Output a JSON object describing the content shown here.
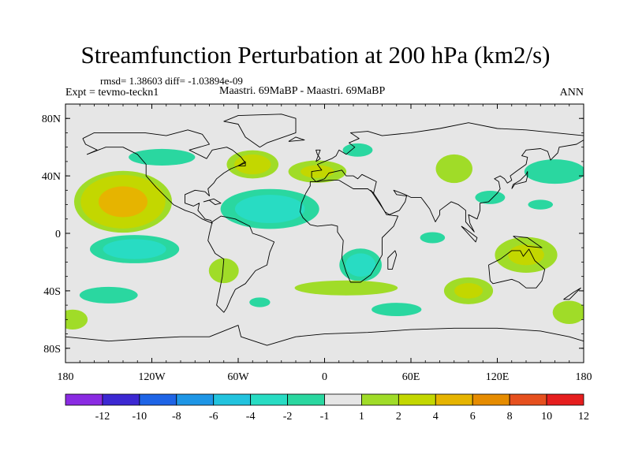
{
  "chart_data": {
    "type": "contour-map",
    "title": "Streamfunction Perturbation at 200 hPa (km2/s)",
    "stats": "rmsd= 1.38603 diff= -1.03894e-09",
    "left_label": "Expt = tevmo-teckn1",
    "center_label": "Maastri.  69MaBP - Maastri.  69MaBP",
    "right_label": "ANN",
    "lon_range": [
      -180,
      180
    ],
    "lat_range": [
      -90,
      90
    ],
    "x_ticks": [
      {
        "lon": -180,
        "label": "180"
      },
      {
        "lon": -120,
        "label": "120W"
      },
      {
        "lon": -60,
        "label": "60W"
      },
      {
        "lon": 0,
        "label": "0"
      },
      {
        "lon": 60,
        "label": "60E"
      },
      {
        "lon": 120,
        "label": "120E"
      },
      {
        "lon": 180,
        "label": "180"
      }
    ],
    "y_ticks": [
      {
        "lat": 80,
        "label": "80N"
      },
      {
        "lat": 40,
        "label": "40N"
      },
      {
        "lat": 0,
        "label": "0"
      },
      {
        "lat": -40,
        "label": "40S"
      },
      {
        "lat": -80,
        "label": "80S"
      }
    ],
    "colorbar": {
      "colors": [
        "#8a2be2",
        "#3c28d2",
        "#1e64e6",
        "#1e96e6",
        "#22c3de",
        "#28dcc3",
        "#2ad7a0",
        "#e6e6e6",
        "#a0dc28",
        "#c3d700",
        "#e6b400",
        "#e68c00",
        "#e6501e",
        "#e61e1e"
      ],
      "labels": [
        "-12",
        "-10",
        "-8",
        "-6",
        "-4",
        "-2",
        "-1",
        "1",
        "2",
        "4",
        "6",
        "8",
        "10",
        "12"
      ]
    },
    "anomalies": [
      {
        "lon": -140,
        "lat": 22,
        "rx": 38,
        "ry": 24,
        "peak": 5
      },
      {
        "lon": -113,
        "lat": 53,
        "rx": 40,
        "ry": 10,
        "peak": -1.5
      },
      {
        "lon": -132,
        "lat": -11,
        "rx": 38,
        "ry": 12,
        "peak": -3
      },
      {
        "lon": -150,
        "lat": -43,
        "rx": 35,
        "ry": 10,
        "peak": -1.5
      },
      {
        "lon": -70,
        "lat": -26,
        "rx": 18,
        "ry": 15,
        "peak": 1.5
      },
      {
        "lon": -38,
        "lat": 17,
        "rx": 42,
        "ry": 17,
        "peak": -3
      },
      {
        "lon": -50,
        "lat": 48,
        "rx": 22,
        "ry": 12,
        "peak": 3
      },
      {
        "lon": -5,
        "lat": 43,
        "rx": 26,
        "ry": 10,
        "peak": 2.5
      },
      {
        "lon": 23,
        "lat": 58,
        "rx": 18,
        "ry": 8,
        "peak": -1.5
      },
      {
        "lon": 25,
        "lat": -22,
        "rx": 18,
        "ry": 14,
        "peak": -3
      },
      {
        "lon": 15,
        "lat": -38,
        "rx": 62,
        "ry": 9,
        "peak": 1.5
      },
      {
        "lon": 100,
        "lat": -40,
        "rx": 22,
        "ry": 12,
        "peak": 2.5
      },
      {
        "lon": 50,
        "lat": -53,
        "rx": 30,
        "ry": 8,
        "peak": -1.5
      },
      {
        "lon": 140,
        "lat": -15,
        "rx": 28,
        "ry": 16,
        "peak": 2.5
      },
      {
        "lon": 170,
        "lat": -55,
        "rx": 20,
        "ry": 14,
        "peak": 1.5
      },
      {
        "lon": -175,
        "lat": -60,
        "rx": 18,
        "ry": 12,
        "peak": 1.5
      },
      {
        "lon": 90,
        "lat": 45,
        "rx": 18,
        "ry": 14,
        "peak": 2
      },
      {
        "lon": 160,
        "lat": 43,
        "rx": 30,
        "ry": 12,
        "peak": -2
      },
      {
        "lon": 115,
        "lat": 25,
        "rx": 18,
        "ry": 8,
        "peak": -1.5
      },
      {
        "lon": 150,
        "lat": 20,
        "rx": 18,
        "ry": 7,
        "peak": -1.3
      },
      {
        "lon": 75,
        "lat": -3,
        "rx": 18,
        "ry": 8,
        "peak": -1.3
      },
      {
        "lon": -45,
        "lat": -48,
        "rx": 15,
        "ry": 7,
        "peak": -1.3
      }
    ],
    "coastlines": [
      [
        [
          -168,
          66
        ],
        [
          -160,
          70
        ],
        [
          -140,
          70
        ],
        [
          -125,
          70
        ],
        [
          -110,
          68
        ],
        [
          -95,
          72
        ],
        [
          -85,
          69
        ],
        [
          -80,
          62
        ],
        [
          -94,
          58
        ],
        [
          -90,
          56
        ],
        [
          -82,
          52
        ],
        [
          -78,
          58
        ],
        [
          -68,
          60
        ],
        [
          -64,
          58
        ],
        [
          -58,
          53
        ],
        [
          -55,
          49
        ],
        [
          -65,
          45
        ],
        [
          -70,
          42
        ],
        [
          -75,
          38
        ],
        [
          -77,
          35
        ],
        [
          -81,
          31
        ],
        [
          -80,
          26
        ],
        [
          -83,
          29
        ],
        [
          -90,
          30
        ],
        [
          -97,
          27
        ],
        [
          -97,
          21
        ],
        [
          -91,
          19
        ],
        [
          -87,
          21
        ],
        [
          -88,
          16
        ],
        [
          -83,
          10
        ],
        [
          -79,
          9
        ],
        [
          -78,
          7
        ],
        [
          -85,
          10
        ],
        [
          -91,
          14
        ],
        [
          -97,
          16
        ],
        [
          -105,
          20
        ],
        [
          -112,
          27
        ],
        [
          -117,
          32
        ],
        [
          -124,
          40
        ],
        [
          -124,
          48
        ],
        [
          -130,
          55
        ],
        [
          -140,
          60
        ],
        [
          -152,
          60
        ],
        [
          -165,
          55
        ],
        [
          -158,
          58
        ],
        [
          -166,
          62
        ],
        [
          -168,
          66
        ]
      ],
      [
        [
          -78,
          8
        ],
        [
          -72,
          12
        ],
        [
          -62,
          10
        ],
        [
          -52,
          5
        ],
        [
          -50,
          0
        ],
        [
          -44,
          -2
        ],
        [
          -35,
          -6
        ],
        [
          -38,
          -13
        ],
        [
          -40,
          -22
        ],
        [
          -48,
          -26
        ],
        [
          -55,
          -35
        ],
        [
          -62,
          -39
        ],
        [
          -65,
          -45
        ],
        [
          -68,
          -52
        ],
        [
          -70,
          -55
        ],
        [
          -75,
          -50
        ],
        [
          -73,
          -40
        ],
        [
          -71,
          -30
        ],
        [
          -70,
          -18
        ],
        [
          -76,
          -14
        ],
        [
          -81,
          -5
        ],
        [
          -80,
          0
        ],
        [
          -78,
          8
        ]
      ],
      [
        [
          -45,
          60
        ],
        [
          -55,
          67
        ],
        [
          -60,
          76
        ],
        [
          -70,
          78
        ],
        [
          -60,
          82
        ],
        [
          -30,
          83
        ],
        [
          -20,
          80
        ],
        [
          -20,
          70
        ],
        [
          -40,
          63
        ],
        [
          -45,
          60
        ]
      ],
      [
        [
          -10,
          36
        ],
        [
          -5,
          36
        ],
        [
          3,
          37
        ],
        [
          10,
          37
        ],
        [
          20,
          31
        ],
        [
          30,
          31
        ],
        [
          34,
          28
        ],
        [
          38,
          22
        ],
        [
          43,
          13
        ],
        [
          51,
          12
        ],
        [
          48,
          5
        ],
        [
          40,
          -3
        ],
        [
          40,
          -15
        ],
        [
          35,
          -24
        ],
        [
          32,
          -29
        ],
        [
          25,
          -34
        ],
        [
          18,
          -34
        ],
        [
          15,
          -27
        ],
        [
          12,
          -17
        ],
        [
          13,
          -5
        ],
        [
          9,
          1
        ],
        [
          9,
          5
        ],
        [
          5,
          6
        ],
        [
          -5,
          5
        ],
        [
          -10,
          6
        ],
        [
          -15,
          11
        ],
        [
          -17,
          15
        ],
        [
          -16,
          21
        ],
        [
          -13,
          28
        ],
        [
          -10,
          33
        ],
        [
          -10,
          36
        ]
      ],
      [
        [
          44,
          -25
        ],
        [
          47,
          -25
        ],
        [
          50,
          -15
        ],
        [
          49,
          -12
        ],
        [
          44,
          -17
        ],
        [
          44,
          -25
        ]
      ],
      [
        [
          -9,
          39
        ],
        [
          -9,
          43
        ],
        [
          -2,
          44
        ],
        [
          -5,
          48
        ],
        [
          5,
          52
        ],
        [
          8,
          54
        ],
        [
          10,
          58
        ],
        [
          15,
          55
        ],
        [
          21,
          60
        ],
        [
          17,
          63
        ],
        [
          24,
          66
        ],
        [
          18,
          70
        ],
        [
          30,
          71
        ],
        [
          40,
          68
        ],
        [
          60,
          70
        ],
        [
          80,
          73
        ],
        [
          100,
          77
        ],
        [
          120,
          73
        ],
        [
          140,
          72
        ],
        [
          160,
          70
        ],
        [
          180,
          68
        ]
      ],
      [
        [
          -9,
          39
        ],
        [
          -6,
          36
        ],
        [
          0,
          38
        ],
        [
          3,
          42
        ],
        [
          12,
          44
        ],
        [
          15,
          40
        ],
        [
          18,
          40
        ],
        [
          20,
          40
        ],
        [
          23,
          38
        ],
        [
          26,
          41
        ],
        [
          36,
          36
        ],
        [
          35,
          32
        ],
        [
          34,
          28
        ],
        [
          32,
          30
        ],
        [
          42,
          15
        ],
        [
          45,
          13
        ],
        [
          52,
          16
        ],
        [
          56,
          22
        ],
        [
          57,
          26
        ],
        [
          50,
          27
        ],
        [
          48,
          30
        ],
        [
          56,
          27
        ],
        [
          60,
          25
        ],
        [
          67,
          25
        ],
        [
          70,
          21
        ],
        [
          73,
          17
        ],
        [
          77,
          8
        ],
        [
          80,
          13
        ],
        [
          80,
          16
        ],
        [
          88,
          22
        ],
        [
          93,
          20
        ],
        [
          98,
          16
        ],
        [
          98,
          8
        ],
        [
          104,
          1
        ],
        [
          101,
          7
        ],
        [
          100,
          13
        ],
        [
          106,
          10
        ],
        [
          108,
          16
        ],
        [
          108,
          21
        ],
        [
          114,
          22
        ],
        [
          120,
          28
        ],
        [
          122,
          31
        ],
        [
          121,
          36
        ],
        [
          118,
          38
        ],
        [
          122,
          40
        ],
        [
          125,
          38
        ],
        [
          127,
          35
        ],
        [
          130,
          37
        ],
        [
          129,
          40
        ],
        [
          133,
          43
        ],
        [
          140,
          48
        ],
        [
          141,
          53
        ],
        [
          137,
          54
        ],
        [
          140,
          58
        ],
        [
          150,
          59
        ],
        [
          155,
          57
        ],
        [
          157,
          51
        ],
        [
          162,
          56
        ],
        [
          163,
          60
        ],
        [
          175,
          62
        ],
        [
          180,
          65
        ]
      ],
      [
        [
          114,
          -22
        ],
        [
          122,
          -18
        ],
        [
          130,
          -12
        ],
        [
          136,
          -12
        ],
        [
          138,
          -16
        ],
        [
          142,
          -11
        ],
        [
          146,
          -19
        ],
        [
          153,
          -25
        ],
        [
          151,
          -33
        ],
        [
          147,
          -38
        ],
        [
          140,
          -38
        ],
        [
          135,
          -34
        ],
        [
          130,
          -32
        ],
        [
          117,
          -35
        ],
        [
          115,
          -33
        ],
        [
          114,
          -22
        ]
      ],
      [
        [
          -180,
          -72
        ],
        [
          -150,
          -75
        ],
        [
          -120,
          -73
        ],
        [
          -100,
          -72
        ],
        [
          -80,
          -72
        ],
        [
          -60,
          -64
        ],
        [
          -58,
          -72
        ],
        [
          -40,
          -78
        ],
        [
          -20,
          -72
        ],
        [
          0,
          -70
        ],
        [
          30,
          -69
        ],
        [
          60,
          -67
        ],
        [
          90,
          -66
        ],
        [
          120,
          -66
        ],
        [
          150,
          -68
        ],
        [
          170,
          -72
        ],
        [
          180,
          -75
        ]
      ],
      [
        [
          -6,
          50
        ],
        [
          -3,
          58
        ],
        [
          -6,
          58
        ],
        [
          -5,
          55
        ],
        [
          -3,
          52
        ],
        [
          -6,
          50
        ]
      ],
      [
        [
          130,
          31
        ],
        [
          132,
          34
        ],
        [
          136,
          35
        ],
        [
          140,
          36
        ],
        [
          141,
          40
        ],
        [
          141,
          43
        ],
        [
          140,
          41
        ],
        [
          136,
          37
        ],
        [
          131,
          34
        ],
        [
          130,
          31
        ]
      ],
      [
        [
          95,
          5
        ],
        [
          105,
          -6
        ],
        [
          106,
          -3
        ],
        [
          98,
          3
        ],
        [
          95,
          5
        ]
      ],
      [
        [
          131,
          -2
        ],
        [
          141,
          -3
        ],
        [
          151,
          -10
        ],
        [
          141,
          -9
        ],
        [
          131,
          -2
        ]
      ],
      [
        [
          -77,
          24
        ],
        [
          -72,
          21
        ],
        [
          -76,
          20
        ],
        [
          -80,
          23
        ],
        [
          -84,
          22
        ],
        [
          -77,
          24
        ]
      ],
      [
        [
          166,
          -46
        ],
        [
          173,
          -41
        ],
        [
          178,
          -38
        ],
        [
          174,
          -42
        ],
        [
          170,
          -46
        ],
        [
          166,
          -46
        ]
      ],
      [
        [
          -25,
          64
        ],
        [
          -14,
          65
        ],
        [
          -20,
          67
        ],
        [
          -25,
          64
        ]
      ],
      [
        [
          -55,
          50
        ],
        [
          -60,
          47
        ],
        [
          -55,
          47
        ],
        [
          -55,
          50
        ]
      ]
    ]
  }
}
